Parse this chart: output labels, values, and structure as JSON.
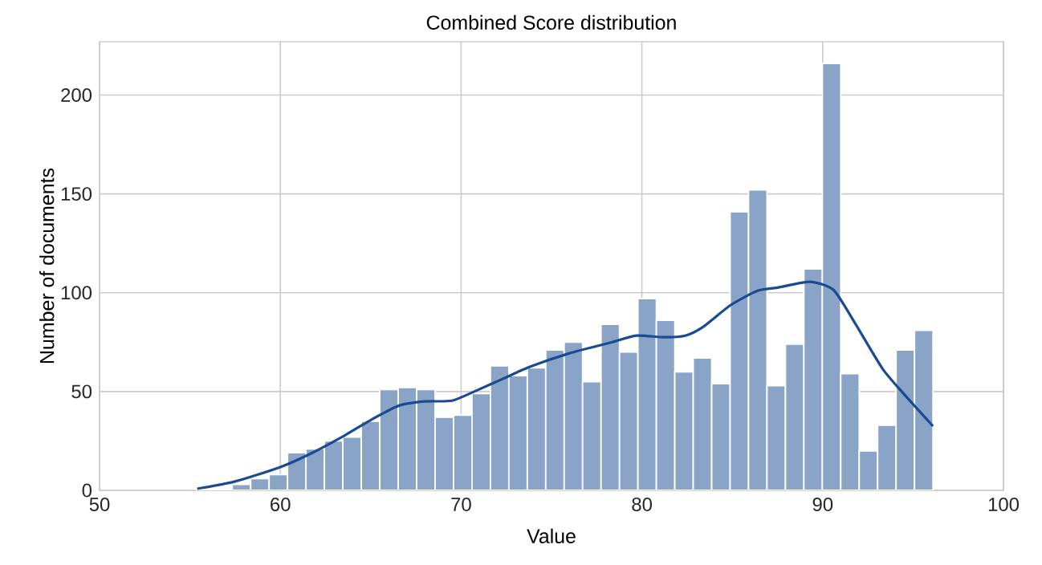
{
  "chart_data": {
    "type": "histogram",
    "title": "Combined Score distribution",
    "xlabel": "Value",
    "ylabel": "Number of documents",
    "bins": [
      55.3,
      56.32,
      57.34,
      58.36,
      59.38,
      60.4,
      61.42,
      62.44,
      63.46,
      64.48,
      65.5,
      66.52,
      67.54,
      68.56,
      69.58,
      70.6,
      71.62,
      72.64,
      73.66,
      74.68,
      75.7,
      76.72,
      77.74,
      78.76,
      79.78,
      80.8,
      81.82,
      82.84,
      83.86,
      84.88,
      85.9,
      86.92,
      87.94,
      88.96,
      89.98,
      91.0,
      92.02,
      93.04,
      94.06,
      95.08,
      96.1
    ],
    "values": [
      0,
      0,
      3,
      6,
      8,
      19,
      21,
      25,
      27,
      35,
      51,
      52,
      51,
      37,
      38,
      49,
      63,
      58,
      62,
      71,
      75,
      55,
      84,
      70,
      97,
      86,
      60,
      67,
      54,
      141,
      152,
      53,
      74,
      112,
      216,
      59,
      20,
      33,
      71,
      81
    ],
    "color": "#8aa4c8",
    "series": [
      {
        "type": "line",
        "color": "#1a4a92",
        "x": [
          55.4,
          57.5,
          60.0,
          61.7,
          63.6,
          65.1,
          66.6,
          68.0,
          69.5,
          70.8,
          72.3,
          73.8,
          76.0,
          78.2,
          79.7,
          81.2,
          82.4,
          83.4,
          84.9,
          86.4,
          87.5,
          89.3,
          90.6,
          91.8,
          93.3,
          94.5,
          96.1
        ],
        "values": [
          0.8,
          4.5,
          11.8,
          18.7,
          28.0,
          36.1,
          43.0,
          45.0,
          45.4,
          50.3,
          56.4,
          62.5,
          69.4,
          74.6,
          78.3,
          77.5,
          78.3,
          82.8,
          93.7,
          101.0,
          102.6,
          105.5,
          101.4,
          84.4,
          61.7,
          48.7,
          32.5
        ]
      }
    ],
    "xlim": [
      50,
      100
    ],
    "ylim": [
      0,
      227
    ],
    "xticks": [
      50,
      60,
      70,
      80,
      90,
      100
    ],
    "yticks": [
      0,
      50,
      100,
      150,
      200
    ],
    "grid": true
  }
}
